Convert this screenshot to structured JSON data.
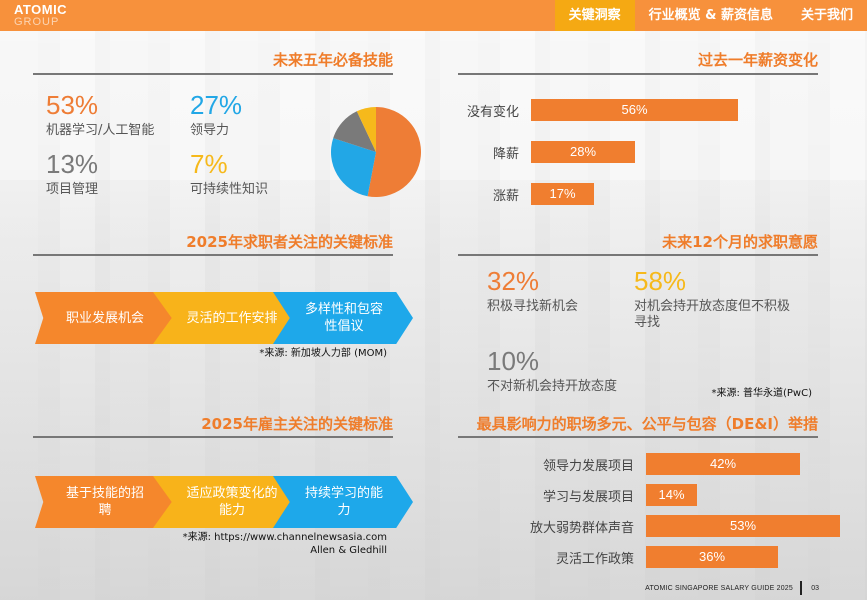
{
  "logo": {
    "line1": "ATOMIC",
    "line2": "GROUP"
  },
  "nav": [
    {
      "label": "关键洞察",
      "active": true
    },
    {
      "label": "行业概览 & 薪资信息",
      "active": false
    },
    {
      "label": "关于我们",
      "active": false
    }
  ],
  "skills": {
    "title": "未来五年必备技能",
    "items": [
      {
        "pct": "53%",
        "label": "机器学习/人工智能",
        "color": "#ee7d36",
        "value": 53
      },
      {
        "pct": "27%",
        "label": "领导力",
        "color": "#22a7e6",
        "value": 27
      },
      {
        "pct": "13%",
        "label": "项目管理",
        "color": "#7a7a7a",
        "value": 13
      },
      {
        "pct": "7%",
        "label": "可持续性知识",
        "color": "#f6b91b",
        "value": 7
      }
    ]
  },
  "salary": {
    "title": "过去一年薪资变化",
    "rows": [
      {
        "label": "没有变化",
        "pct": "56%",
        "value": 56
      },
      {
        "label": "降薪",
        "pct": "28%",
        "value": 28
      },
      {
        "label": "涨薪",
        "pct": "17%",
        "value": 17
      }
    ]
  },
  "seekers": {
    "title": "2025年求职者关注的关键标准",
    "steps": [
      "职业发展机会",
      "灵活的工作安排",
      "多样性和包容性倡议"
    ],
    "source": "*来源: 新加坡人力部 (MOM)"
  },
  "intent": {
    "title": "未来12个月的求职意愿",
    "items": [
      {
        "pct": "32%",
        "label": "积极寻找新机会",
        "color": "#ee7d36"
      },
      {
        "pct": "58%",
        "label": "对机会持开放态度但不积极寻找",
        "color": "#f6b91b"
      },
      {
        "pct": "10%",
        "label": "不对新机会持开放态度",
        "color": "#7a7a7a"
      }
    ],
    "source": "*来源: 普华永道(PwC)"
  },
  "employers": {
    "title": "2025年雇主关注的关键标准",
    "steps": [
      "基于技能的招聘",
      "适应政策变化的能力",
      "持续学习的能力"
    ],
    "source_line1": "*来源: https://www.channelnewsasia.com",
    "source_line2": "Allen & Gledhill"
  },
  "dei": {
    "title": "最具影响力的职场多元、公平与包容（DE&I）举措",
    "rows": [
      {
        "label": "领导力发展项目",
        "pct": "42%",
        "value": 42
      },
      {
        "label": "学习与发展项目",
        "pct": "14%",
        "value": 14
      },
      {
        "label": "放大弱势群体声音",
        "pct": "53%",
        "value": 53
      },
      {
        "label": "灵活工作政策",
        "pct": "36%",
        "value": 36
      }
    ]
  },
  "footer": {
    "guide": "ATOMIC SINGAPORE SALARY GUIDE 2025",
    "page": "03"
  }
}
